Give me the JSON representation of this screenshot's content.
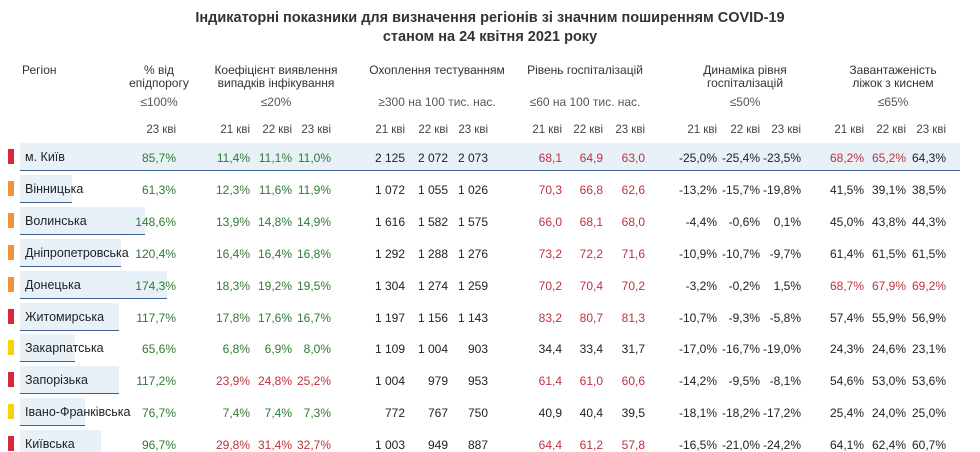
{
  "title": {
    "line1": "Індикаторні показники для визначення регіонів зі значним поширенням COVID-19",
    "line2": "станом на 24 квітня 2021 року"
  },
  "headers": {
    "region": "Регіон",
    "epid": [
      "% від",
      "епідпорогу"
    ],
    "epid_cond": "≤100%",
    "coef": [
      "Коефіцієнт виявлення",
      "випадків інфікування"
    ],
    "coef_cond": "≤20%",
    "test": [
      "Охоплення тестуванням"
    ],
    "test_cond": "≥300 на 100 тис. нас.",
    "hosp": [
      "Рівень госпіталізацій"
    ],
    "hosp_cond": "≤60 на 100 тис. нас.",
    "dyn": [
      "Динаміка рівня",
      "госпіталізацій"
    ],
    "dyn_cond": "≤50%",
    "load": [
      "Завантаженість",
      "ліжок з киснем"
    ],
    "load_cond": "≤65%"
  },
  "sub_headers": {
    "epid": [
      "23 кві"
    ],
    "coef": [
      "21 кві",
      "22 кві",
      "23 кві"
    ],
    "test": [
      "21 кві",
      "22 кві",
      "23 кві"
    ],
    "hosp": [
      "21 кві",
      "22 кві",
      "23 кві"
    ],
    "dyn": [
      "21 кві",
      "22 кві",
      "23 кві"
    ],
    "load": [
      "21 кві",
      "22 кві",
      "23 кві"
    ]
  },
  "colors": {
    "red": "#d7263d",
    "orange": "#f0943c",
    "yellow": "#f7d400",
    "good": "#2f7a2f",
    "bad": "#c0303e",
    "band": "#e8f0f8"
  },
  "rows": [
    {
      "name": "м. Київ",
      "level": "red",
      "highlight": true,
      "epid": {
        "v": "85,7%",
        "c": "g",
        "bar": 0.857
      },
      "coef": [
        {
          "v": "11,4%",
          "c": "g"
        },
        {
          "v": "11,1%",
          "c": "g"
        },
        {
          "v": "11,0%",
          "c": "g"
        }
      ],
      "test": [
        {
          "v": "2 125",
          "c": "k"
        },
        {
          "v": "2 072",
          "c": "k"
        },
        {
          "v": "2 073",
          "c": "k"
        }
      ],
      "hosp": [
        {
          "v": "68,1",
          "c": "r"
        },
        {
          "v": "64,9",
          "c": "r"
        },
        {
          "v": "63,0",
          "c": "r"
        }
      ],
      "dyn": [
        {
          "v": "-25,0%",
          "c": "k"
        },
        {
          "v": "-25,4%",
          "c": "k"
        },
        {
          "v": "-23,5%",
          "c": "k"
        }
      ],
      "load": [
        {
          "v": "68,2%",
          "c": "r"
        },
        {
          "v": "65,2%",
          "c": "r"
        },
        {
          "v": "64,3%",
          "c": "k"
        }
      ]
    },
    {
      "name": "Вінницька",
      "level": "orange",
      "highlight": false,
      "epid": {
        "v": "61,3%",
        "c": "g",
        "bar": 0.613
      },
      "coef": [
        {
          "v": "12,3%",
          "c": "g"
        },
        {
          "v": "11,6%",
          "c": "g"
        },
        {
          "v": "11,9%",
          "c": "g"
        }
      ],
      "test": [
        {
          "v": "1 072",
          "c": "k"
        },
        {
          "v": "1 055",
          "c": "k"
        },
        {
          "v": "1 026",
          "c": "k"
        }
      ],
      "hosp": [
        {
          "v": "70,3",
          "c": "r"
        },
        {
          "v": "66,8",
          "c": "r"
        },
        {
          "v": "62,6",
          "c": "r"
        }
      ],
      "dyn": [
        {
          "v": "-13,2%",
          "c": "k"
        },
        {
          "v": "-15,7%",
          "c": "k"
        },
        {
          "v": "-19,8%",
          "c": "k"
        }
      ],
      "load": [
        {
          "v": "41,5%",
          "c": "k"
        },
        {
          "v": "39,1%",
          "c": "k"
        },
        {
          "v": "38,5%",
          "c": "k"
        }
      ]
    },
    {
      "name": "Волинська",
      "level": "orange",
      "highlight": false,
      "epid": {
        "v": "148,6%",
        "c": "g",
        "bar": 1.486
      },
      "coef": [
        {
          "v": "13,9%",
          "c": "g"
        },
        {
          "v": "14,8%",
          "c": "g"
        },
        {
          "v": "14,9%",
          "c": "g"
        }
      ],
      "test": [
        {
          "v": "1 616",
          "c": "k"
        },
        {
          "v": "1 582",
          "c": "k"
        },
        {
          "v": "1 575",
          "c": "k"
        }
      ],
      "hosp": [
        {
          "v": "66,0",
          "c": "r"
        },
        {
          "v": "68,1",
          "c": "r"
        },
        {
          "v": "68,0",
          "c": "r"
        }
      ],
      "dyn": [
        {
          "v": "-4,4%",
          "c": "k"
        },
        {
          "v": "-0,6%",
          "c": "k"
        },
        {
          "v": "0,1%",
          "c": "k"
        }
      ],
      "load": [
        {
          "v": "45,0%",
          "c": "k"
        },
        {
          "v": "43,8%",
          "c": "k"
        },
        {
          "v": "44,3%",
          "c": "k"
        }
      ]
    },
    {
      "name": "Дніпропетровська",
      "level": "orange",
      "highlight": false,
      "epid": {
        "v": "120,4%",
        "c": "g",
        "bar": 1.204
      },
      "coef": [
        {
          "v": "16,4%",
          "c": "g"
        },
        {
          "v": "16,4%",
          "c": "g"
        },
        {
          "v": "16,8%",
          "c": "g"
        }
      ],
      "test": [
        {
          "v": "1 292",
          "c": "k"
        },
        {
          "v": "1 288",
          "c": "k"
        },
        {
          "v": "1 276",
          "c": "k"
        }
      ],
      "hosp": [
        {
          "v": "73,2",
          "c": "r"
        },
        {
          "v": "72,2",
          "c": "r"
        },
        {
          "v": "71,6",
          "c": "r"
        }
      ],
      "dyn": [
        {
          "v": "-10,9%",
          "c": "k"
        },
        {
          "v": "-10,7%",
          "c": "k"
        },
        {
          "v": "-9,7%",
          "c": "k"
        }
      ],
      "load": [
        {
          "v": "61,4%",
          "c": "k"
        },
        {
          "v": "61,5%",
          "c": "k"
        },
        {
          "v": "61,5%",
          "c": "k"
        }
      ]
    },
    {
      "name": "Донецька",
      "level": "orange",
      "highlight": false,
      "epid": {
        "v": "174,3%",
        "c": "g",
        "bar": 1.743
      },
      "coef": [
        {
          "v": "18,3%",
          "c": "g"
        },
        {
          "v": "19,2%",
          "c": "g"
        },
        {
          "v": "19,5%",
          "c": "g"
        }
      ],
      "test": [
        {
          "v": "1 304",
          "c": "k"
        },
        {
          "v": "1 274",
          "c": "k"
        },
        {
          "v": "1 259",
          "c": "k"
        }
      ],
      "hosp": [
        {
          "v": "70,2",
          "c": "r"
        },
        {
          "v": "70,4",
          "c": "r"
        },
        {
          "v": "70,2",
          "c": "r"
        }
      ],
      "dyn": [
        {
          "v": "-3,2%",
          "c": "k"
        },
        {
          "v": "-0,2%",
          "c": "k"
        },
        {
          "v": "1,5%",
          "c": "k"
        }
      ],
      "load": [
        {
          "v": "68,7%",
          "c": "r"
        },
        {
          "v": "67,9%",
          "c": "r"
        },
        {
          "v": "69,2%",
          "c": "r"
        }
      ]
    },
    {
      "name": "Житомирська",
      "level": "red",
      "highlight": false,
      "epid": {
        "v": "117,7%",
        "c": "g",
        "bar": 1.177
      },
      "coef": [
        {
          "v": "17,8%",
          "c": "g"
        },
        {
          "v": "17,6%",
          "c": "g"
        },
        {
          "v": "16,7%",
          "c": "g"
        }
      ],
      "test": [
        {
          "v": "1 197",
          "c": "k"
        },
        {
          "v": "1 156",
          "c": "k"
        },
        {
          "v": "1 143",
          "c": "k"
        }
      ],
      "hosp": [
        {
          "v": "83,2",
          "c": "r"
        },
        {
          "v": "80,7",
          "c": "r"
        },
        {
          "v": "81,3",
          "c": "r"
        }
      ],
      "dyn": [
        {
          "v": "-10,7%",
          "c": "k"
        },
        {
          "v": "-9,3%",
          "c": "k"
        },
        {
          "v": "-5,8%",
          "c": "k"
        }
      ],
      "load": [
        {
          "v": "57,4%",
          "c": "k"
        },
        {
          "v": "55,9%",
          "c": "k"
        },
        {
          "v": "56,9%",
          "c": "k"
        }
      ]
    },
    {
      "name": "Закарпатська",
      "level": "yellow",
      "highlight": false,
      "epid": {
        "v": "65,6%",
        "c": "g",
        "bar": 0.656
      },
      "coef": [
        {
          "v": "6,8%",
          "c": "g"
        },
        {
          "v": "6,9%",
          "c": "g"
        },
        {
          "v": "8,0%",
          "c": "g"
        }
      ],
      "test": [
        {
          "v": "1 109",
          "c": "k"
        },
        {
          "v": "1 004",
          "c": "k"
        },
        {
          "v": "903",
          "c": "k"
        }
      ],
      "hosp": [
        {
          "v": "34,4",
          "c": "k"
        },
        {
          "v": "33,4",
          "c": "k"
        },
        {
          "v": "31,7",
          "c": "k"
        }
      ],
      "dyn": [
        {
          "v": "-17,0%",
          "c": "k"
        },
        {
          "v": "-16,7%",
          "c": "k"
        },
        {
          "v": "-19,0%",
          "c": "k"
        }
      ],
      "load": [
        {
          "v": "24,3%",
          "c": "k"
        },
        {
          "v": "24,6%",
          "c": "k"
        },
        {
          "v": "23,1%",
          "c": "k"
        }
      ]
    },
    {
      "name": "Запорізька",
      "level": "red",
      "highlight": false,
      "epid": {
        "v": "117,2%",
        "c": "g",
        "bar": 1.172
      },
      "coef": [
        {
          "v": "23,9%",
          "c": "r"
        },
        {
          "v": "24,8%",
          "c": "r"
        },
        {
          "v": "25,2%",
          "c": "r"
        }
      ],
      "test": [
        {
          "v": "1 004",
          "c": "k"
        },
        {
          "v": "979",
          "c": "k"
        },
        {
          "v": "953",
          "c": "k"
        }
      ],
      "hosp": [
        {
          "v": "61,4",
          "c": "r"
        },
        {
          "v": "61,0",
          "c": "r"
        },
        {
          "v": "60,6",
          "c": "r"
        }
      ],
      "dyn": [
        {
          "v": "-14,2%",
          "c": "k"
        },
        {
          "v": "-9,5%",
          "c": "k"
        },
        {
          "v": "-8,1%",
          "c": "k"
        }
      ],
      "load": [
        {
          "v": "54,6%",
          "c": "k"
        },
        {
          "v": "53,0%",
          "c": "k"
        },
        {
          "v": "53,6%",
          "c": "k"
        }
      ]
    },
    {
      "name": "Івано-Франківська",
      "level": "yellow",
      "highlight": false,
      "epid": {
        "v": "76,7%",
        "c": "g",
        "bar": 0.767
      },
      "coef": [
        {
          "v": "7,4%",
          "c": "g"
        },
        {
          "v": "7,4%",
          "c": "g"
        },
        {
          "v": "7,3%",
          "c": "g"
        }
      ],
      "test": [
        {
          "v": "772",
          "c": "k"
        },
        {
          "v": "767",
          "c": "k"
        },
        {
          "v": "750",
          "c": "k"
        }
      ],
      "hosp": [
        {
          "v": "40,9",
          "c": "k"
        },
        {
          "v": "40,4",
          "c": "k"
        },
        {
          "v": "39,5",
          "c": "k"
        }
      ],
      "dyn": [
        {
          "v": "-18,1%",
          "c": "k"
        },
        {
          "v": "-18,2%",
          "c": "k"
        },
        {
          "v": "-17,2%",
          "c": "k"
        }
      ],
      "load": [
        {
          "v": "25,4%",
          "c": "k"
        },
        {
          "v": "24,0%",
          "c": "k"
        },
        {
          "v": "25,0%",
          "c": "k"
        }
      ]
    },
    {
      "name": "Київська",
      "level": "red",
      "highlight": false,
      "epid": {
        "v": "96,7%",
        "c": "g",
        "bar": 0.967
      },
      "coef": [
        {
          "v": "29,8%",
          "c": "r"
        },
        {
          "v": "31,4%",
          "c": "r"
        },
        {
          "v": "32,7%",
          "c": "r"
        }
      ],
      "test": [
        {
          "v": "1 003",
          "c": "k"
        },
        {
          "v": "949",
          "c": "k"
        },
        {
          "v": "887",
          "c": "k"
        }
      ],
      "hosp": [
        {
          "v": "64,4",
          "c": "r"
        },
        {
          "v": "61,2",
          "c": "r"
        },
        {
          "v": "57,8",
          "c": "r"
        }
      ],
      "dyn": [
        {
          "v": "-16,5%",
          "c": "k"
        },
        {
          "v": "-21,0%",
          "c": "k"
        },
        {
          "v": "-24,2%",
          "c": "k"
        }
      ],
      "load": [
        {
          "v": "64,1%",
          "c": "k"
        },
        {
          "v": "62,4%",
          "c": "k"
        },
        {
          "v": "60,7%",
          "c": "k"
        }
      ]
    }
  ]
}
